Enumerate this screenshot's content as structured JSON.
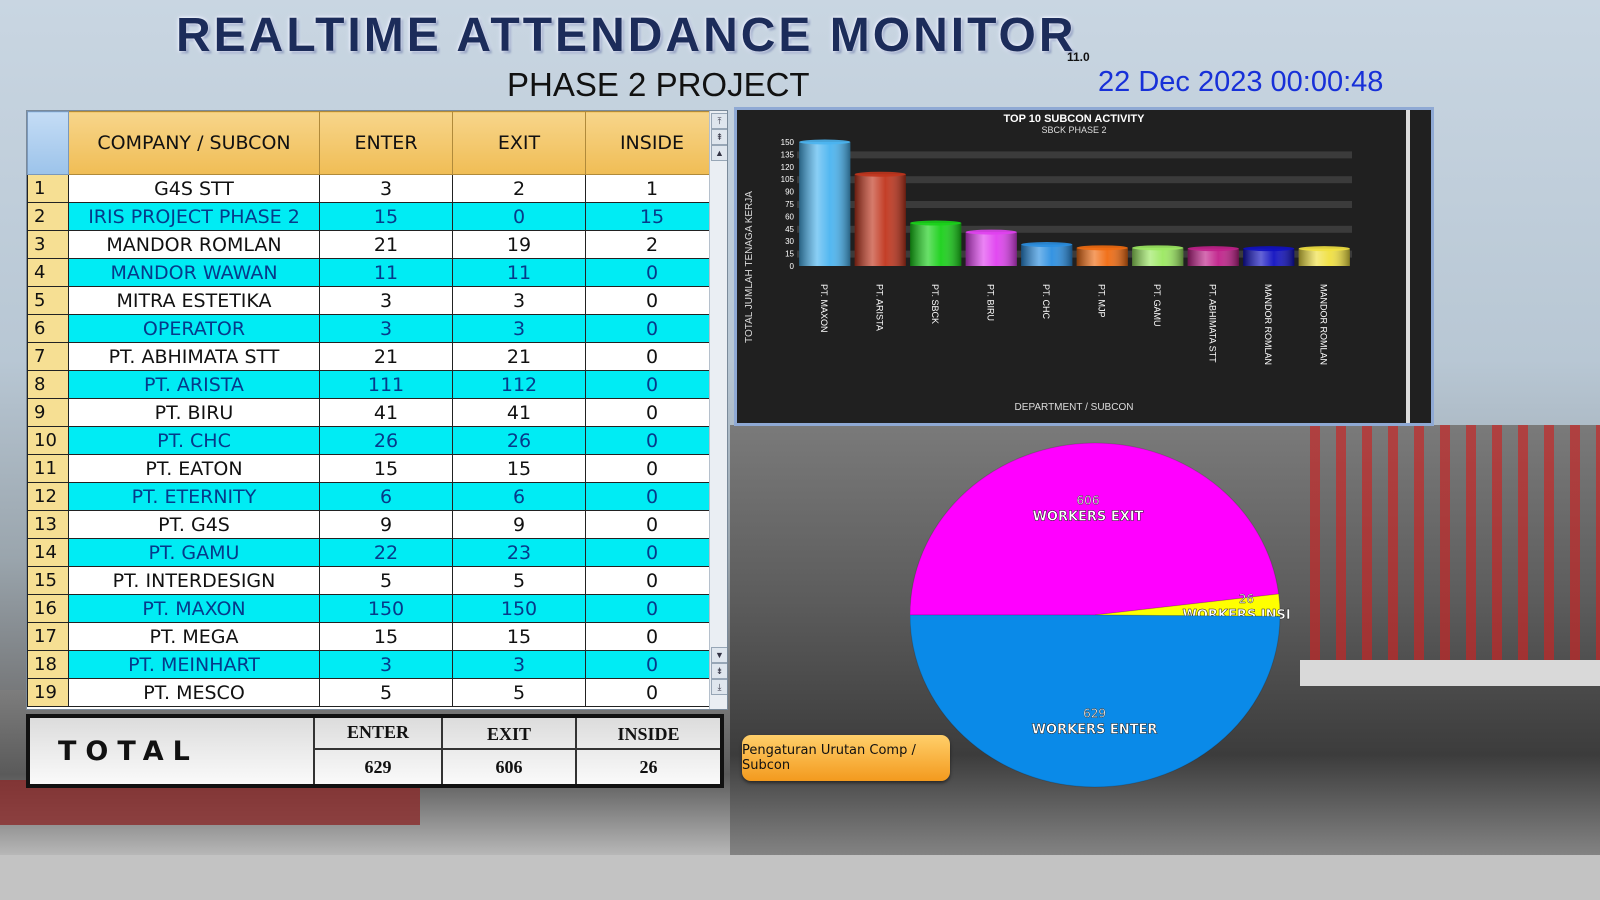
{
  "header": {
    "title": "REALTIME  ATTENDANCE  MONITOR",
    "version": "11.0",
    "subtitle": "PHASE 2 PROJECT",
    "datetime": "22 Dec 2023 00:00:48"
  },
  "table": {
    "columns": [
      "COMPANY / SUBCON",
      "ENTER",
      "EXIT",
      "INSIDE"
    ],
    "rows": [
      {
        "no": "1",
        "company": "G4S STT",
        "enter": "3",
        "exit": "2",
        "inside": "1"
      },
      {
        "no": "2",
        "company": "IRIS PROJECT PHASE 2",
        "enter": "15",
        "exit": "0",
        "inside": "15"
      },
      {
        "no": "3",
        "company": "MANDOR ROMLAN",
        "enter": "21",
        "exit": "19",
        "inside": "2"
      },
      {
        "no": "4",
        "company": "MANDOR WAWAN",
        "enter": "11",
        "exit": "11",
        "inside": "0"
      },
      {
        "no": "5",
        "company": "MITRA ESTETIKA",
        "enter": "3",
        "exit": "3",
        "inside": "0"
      },
      {
        "no": "6",
        "company": "OPERATOR",
        "enter": "3",
        "exit": "3",
        "inside": "0"
      },
      {
        "no": "7",
        "company": "PT. ABHIMATA STT",
        "enter": "21",
        "exit": "21",
        "inside": "0"
      },
      {
        "no": "8",
        "company": "PT. ARISTA",
        "enter": "111",
        "exit": "112",
        "inside": "0"
      },
      {
        "no": "9",
        "company": "PT. BIRU",
        "enter": "41",
        "exit": "41",
        "inside": "0"
      },
      {
        "no": "10",
        "company": "PT. CHC",
        "enter": "26",
        "exit": "26",
        "inside": "0"
      },
      {
        "no": "11",
        "company": "PT. EATON",
        "enter": "15",
        "exit": "15",
        "inside": "0"
      },
      {
        "no": "12",
        "company": "PT. ETERNITY",
        "enter": "6",
        "exit": "6",
        "inside": "0"
      },
      {
        "no": "13",
        "company": "PT. G4S",
        "enter": "9",
        "exit": "9",
        "inside": "0"
      },
      {
        "no": "14",
        "company": "PT. GAMU",
        "enter": "22",
        "exit": "23",
        "inside": "0"
      },
      {
        "no": "15",
        "company": "PT. INTERDESIGN",
        "enter": "5",
        "exit": "5",
        "inside": "0"
      },
      {
        "no": "16",
        "company": "PT. MAXON",
        "enter": "150",
        "exit": "150",
        "inside": "0"
      },
      {
        "no": "17",
        "company": "PT. MEGA",
        "enter": "15",
        "exit": "15",
        "inside": "0"
      },
      {
        "no": "18",
        "company": "PT. MEINHART",
        "enter": "3",
        "exit": "3",
        "inside": "0"
      },
      {
        "no": "19",
        "company": "PT. MESCO",
        "enter": "5",
        "exit": "5",
        "inside": "0"
      }
    ]
  },
  "totals": {
    "label": "TOTAL",
    "enter_label": "ENTER",
    "exit_label": "EXIT",
    "inside_label": "INSIDE",
    "enter": "629",
    "exit": "606",
    "inside": "26"
  },
  "sort_button_label": "Pengaturan Urutan Comp / Subcon",
  "chart_data": [
    {
      "type": "bar",
      "title": "TOP 10 SUBCON ACTIVITY",
      "subtitle": "SBCK PHASE 2",
      "xlabel": "DEPARTMENT / SUBCON",
      "ylabel": "TOTAL JUMLAH TENAGA KERJA",
      "ylim": [
        0,
        150
      ],
      "yticks": [
        0,
        15,
        30,
        45,
        60,
        75,
        90,
        105,
        120,
        135,
        150
      ],
      "categories": [
        "PT. MAXON",
        "PT. ARISTA",
        "PT. SBCK",
        "PT. BIRU",
        "PT. CHC",
        "PT. MJP",
        "PT. GAMU",
        "PT. ABHIMATA STT",
        "MANDOR ROMLAN",
        "MANDOR ROMLAN"
      ],
      "values": [
        150,
        111,
        52,
        41,
        26,
        22,
        22,
        21,
        21,
        21
      ],
      "colors": [
        "#4ab4f0",
        "#c0341c",
        "#18d018",
        "#e040f0",
        "#2a8ee0",
        "#f06a10",
        "#9be860",
        "#c0208a",
        "#1010c0",
        "#f0e040"
      ],
      "grid": true
    },
    {
      "type": "pie",
      "slices": [
        {
          "label": "WORKERS EXIT",
          "value": 606,
          "color": "#ff00ff"
        },
        {
          "label": "WORKERS INSIDE",
          "value": 26,
          "color": "#ffff00"
        },
        {
          "label": "WORKERS ENTER",
          "value": 629,
          "color": "#0a8ae8"
        }
      ]
    }
  ]
}
